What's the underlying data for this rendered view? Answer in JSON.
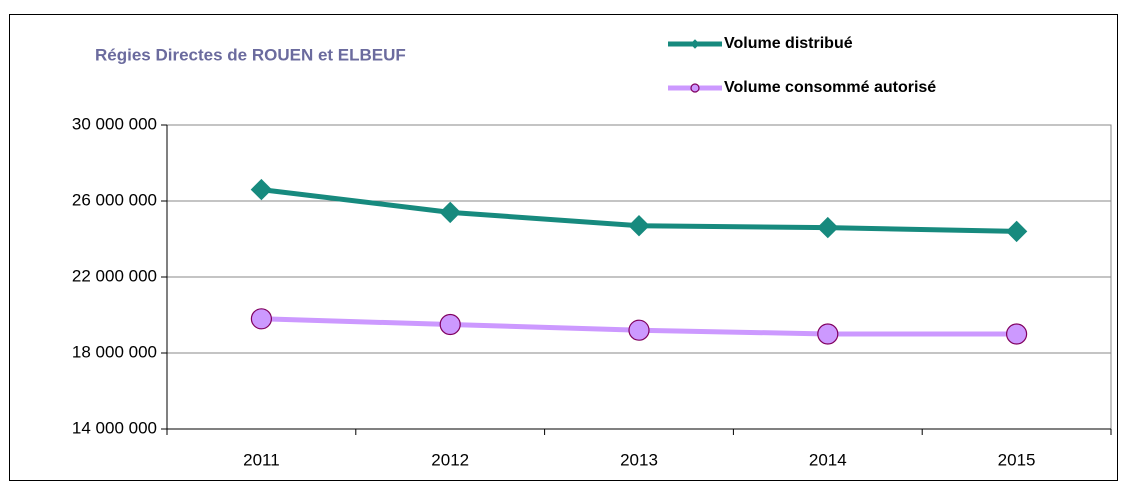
{
  "chart_data": {
    "type": "line",
    "title": "Régies Directes de ROUEN et ELBEUF",
    "categories": [
      "2011",
      "2012",
      "2013",
      "2014",
      "2015"
    ],
    "series": [
      {
        "name": "Volume distribué",
        "color": "#178a7e",
        "marker": "diamond",
        "values": [
          26600000,
          25400000,
          24700000,
          24600000,
          24400000
        ]
      },
      {
        "name": "Volume consommé autorisé",
        "color": "#cc99ff",
        "marker": "circle",
        "values": [
          19800000,
          19500000,
          19200000,
          19000000,
          19000000
        ]
      }
    ],
    "ylim": [
      14000000,
      30000000
    ],
    "yticks": [
      {
        "value": 14000000,
        "label": "14 000 000"
      },
      {
        "value": 18000000,
        "label": "18 000 000"
      },
      {
        "value": 22000000,
        "label": "22 000 000"
      },
      {
        "value": 26000000,
        "label": "26 000 000"
      },
      {
        "value": 30000000,
        "label": "30 000 000"
      }
    ],
    "grid": true
  }
}
